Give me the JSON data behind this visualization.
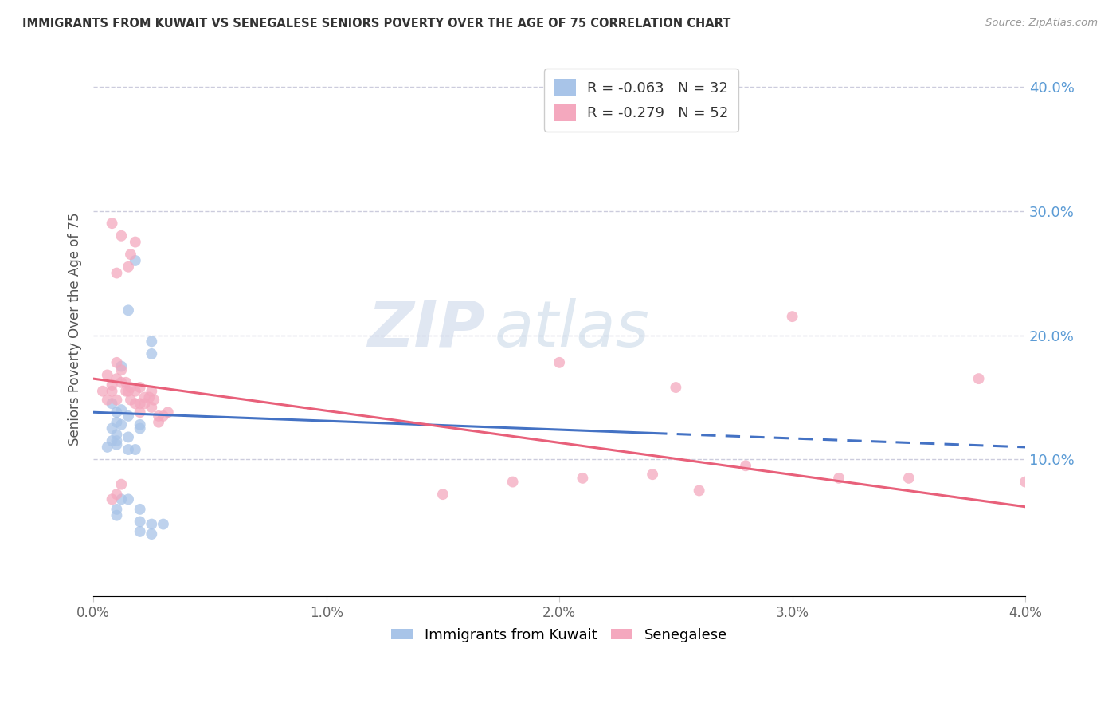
{
  "title": "IMMIGRANTS FROM KUWAIT VS SENEGALESE SENIORS POVERTY OVER THE AGE OF 75 CORRELATION CHART",
  "source_text": "Source: ZipAtlas.com",
  "ylabel": "Seniors Poverty Over the Age of 75",
  "xlabel_blue": "Immigrants from Kuwait",
  "xlabel_pink": "Senegalese",
  "r_blue": -0.063,
  "n_blue": 32,
  "r_pink": -0.279,
  "n_pink": 52,
  "blue_color": "#a8c4e8",
  "pink_color": "#f4a8be",
  "blue_line_color": "#4472c4",
  "pink_line_color": "#e8607a",
  "right_axis_color": "#5b9bd5",
  "xmin": 0.0,
  "xmax": 0.04,
  "ymin": -0.01,
  "ymax": 0.42,
  "right_yticks": [
    0.1,
    0.2,
    0.3,
    0.4
  ],
  "right_yticklabels": [
    "10.0%",
    "20.0%",
    "30.0%",
    "40.0%"
  ],
  "xticks": [
    0.0,
    0.01,
    0.02,
    0.03,
    0.04
  ],
  "xticklabels": [
    "0.0%",
    "1.0%",
    "2.0%",
    "3.0%",
    "4.0%"
  ],
  "blue_scatter_x": [
    0.0008,
    0.001,
    0.0012,
    0.001,
    0.0015,
    0.0008,
    0.001,
    0.0012,
    0.0015,
    0.002,
    0.001,
    0.0008,
    0.0006,
    0.001,
    0.0015,
    0.0018,
    0.002,
    0.0025,
    0.0015,
    0.0018,
    0.0012,
    0.0025,
    0.001,
    0.0015,
    0.002,
    0.0012,
    0.001,
    0.002,
    0.0025,
    0.002,
    0.0025,
    0.003
  ],
  "blue_scatter_y": [
    0.145,
    0.138,
    0.14,
    0.13,
    0.135,
    0.125,
    0.12,
    0.128,
    0.118,
    0.125,
    0.115,
    0.115,
    0.11,
    0.112,
    0.108,
    0.108,
    0.128,
    0.195,
    0.22,
    0.26,
    0.175,
    0.185,
    0.055,
    0.068,
    0.06,
    0.068,
    0.06,
    0.05,
    0.048,
    0.042,
    0.04,
    0.048
  ],
  "pink_scatter_x": [
    0.0004,
    0.0006,
    0.0006,
    0.0008,
    0.0008,
    0.001,
    0.001,
    0.001,
    0.0012,
    0.0012,
    0.0014,
    0.0014,
    0.0015,
    0.0016,
    0.0016,
    0.0018,
    0.0018,
    0.002,
    0.002,
    0.002,
    0.0022,
    0.0022,
    0.0024,
    0.0025,
    0.0025,
    0.0026,
    0.0028,
    0.0028,
    0.003,
    0.0032,
    0.001,
    0.0008,
    0.0012,
    0.0015,
    0.0016,
    0.0018,
    0.0008,
    0.001,
    0.0012,
    0.03,
    0.035,
    0.038,
    0.02,
    0.025,
    0.032,
    0.028,
    0.015,
    0.018,
    0.021,
    0.024,
    0.026,
    0.04
  ],
  "pink_scatter_y": [
    0.155,
    0.148,
    0.168,
    0.16,
    0.155,
    0.148,
    0.165,
    0.178,
    0.162,
    0.172,
    0.155,
    0.162,
    0.155,
    0.148,
    0.158,
    0.145,
    0.155,
    0.145,
    0.138,
    0.158,
    0.145,
    0.15,
    0.15,
    0.142,
    0.155,
    0.148,
    0.135,
    0.13,
    0.135,
    0.138,
    0.25,
    0.29,
    0.28,
    0.255,
    0.265,
    0.275,
    0.068,
    0.072,
    0.08,
    0.215,
    0.085,
    0.165,
    0.178,
    0.158,
    0.085,
    0.095,
    0.072,
    0.082,
    0.085,
    0.088,
    0.075,
    0.082
  ],
  "watermark_zip": "ZIP",
  "watermark_atlas": "atlas",
  "background_color": "#ffffff",
  "grid_color": "#ccccdd",
  "marker_size": 100
}
